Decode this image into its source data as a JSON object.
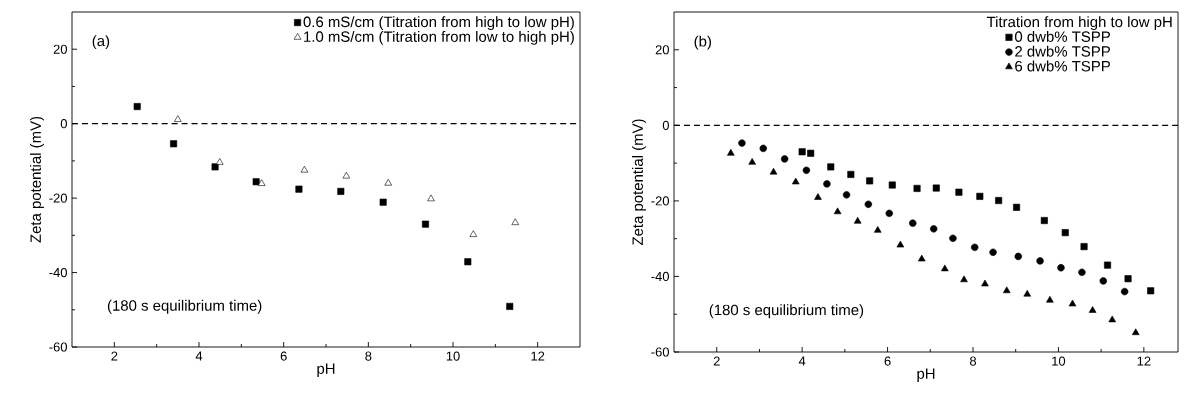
{
  "chart_data": [
    {
      "type": "scatter",
      "xlabel": "pH",
      "ylabel": "Zeta potential (mV)",
      "xlim": [
        1,
        13
      ],
      "ylim": [
        -60,
        30
      ],
      "xticks": [
        2,
        4,
        6,
        8,
        10,
        12
      ],
      "yticks": [
        -60,
        -40,
        -20,
        0,
        20
      ],
      "legend": "top right",
      "grid": false,
      "annotations": [
        "(a)",
        "(180 s equilibrium time)"
      ],
      "ref_lines": [
        {
          "axis": "y",
          "value": 0,
          "line_style": "dashed",
          "color": "#000000"
        }
      ],
      "series": [
        {
          "name": "0.6 mS/cm (Titration from high to low pH)",
          "color": "#000000",
          "marker": "square",
          "x": [
            2.54,
            3.4,
            4.38,
            5.35,
            6.36,
            7.35,
            8.35,
            9.35,
            10.35,
            11.34
          ],
          "values": [
            4.6,
            -5.4,
            -11.6,
            -15.6,
            -17.6,
            -18.2,
            -21.1,
            -27.0,
            -37.1,
            -49.1
          ]
        },
        {
          "name": "1.0 mS/cm (Titration from low to high pH)",
          "color": "#ffffff",
          "marker": "triangle-down",
          "x": [
            3.5,
            4.49,
            5.48,
            6.49,
            7.48,
            8.47,
            9.48,
            10.48,
            11.47
          ],
          "values": [
            1.1,
            -10.4,
            -16.1,
            -12.5,
            -14.1,
            -16.0,
            -20.2,
            -29.8,
            -26.6
          ]
        }
      ]
    },
    {
      "type": "scatter",
      "xlabel": "pH",
      "ylabel": "Zeta potential (mV)",
      "xlim": [
        1,
        12.8
      ],
      "ylim": [
        -60,
        30
      ],
      "xticks": [
        2,
        4,
        6,
        8,
        10,
        12
      ],
      "yticks": [
        -60,
        -40,
        -20,
        0,
        20
      ],
      "legend": "top right",
      "legend_title": "Titration from high to low pH",
      "grid": false,
      "annotations": [
        "(b)",
        "(180 s equilibrium time)"
      ],
      "ref_lines": [
        {
          "axis": "y",
          "value": 0,
          "line_style": "dashed",
          "color": "#000000"
        }
      ],
      "series": [
        {
          "name": "0 dwb% TSPP",
          "color": "#000000",
          "marker": "square",
          "x": [
            4.0,
            4.2,
            4.67,
            5.14,
            5.58,
            6.11,
            6.69,
            7.14,
            7.67,
            8.16,
            8.6,
            9.02,
            9.67,
            10.16,
            10.6,
            11.15,
            11.63,
            12.16
          ],
          "values": [
            -7.0,
            -7.4,
            -11.0,
            -13.0,
            -14.7,
            -15.8,
            -16.7,
            -16.6,
            -17.7,
            -18.8,
            -19.9,
            -21.7,
            -25.2,
            -28.4,
            -32.1,
            -37.0,
            -40.6,
            -43.8
          ]
        },
        {
          "name": "2 dwb% TSPP",
          "color": "#000000",
          "marker": "circle",
          "x": [
            2.59,
            3.09,
            3.59,
            4.1,
            4.58,
            5.04,
            5.55,
            6.04,
            6.59,
            7.08,
            7.53,
            8.04,
            8.47,
            9.06,
            9.57,
            10.06,
            10.55,
            11.05,
            11.55
          ],
          "values": [
            -4.7,
            -6.1,
            -8.9,
            -11.9,
            -15.5,
            -18.4,
            -20.9,
            -23.3,
            -25.9,
            -27.4,
            -29.9,
            -32.3,
            -33.6,
            -34.7,
            -35.9,
            -37.7,
            -38.9,
            -41.2,
            -44.0
          ]
        },
        {
          "name": "6 dwb% TSPP",
          "color": "#000000",
          "marker": "triangle",
          "x": [
            2.33,
            2.83,
            3.33,
            3.85,
            4.37,
            4.83,
            5.3,
            5.77,
            6.3,
            6.8,
            7.34,
            7.79,
            8.28,
            8.79,
            9.27,
            9.8,
            10.33,
            10.8,
            11.26,
            11.81
          ],
          "values": [
            -7.4,
            -9.8,
            -12.4,
            -15.0,
            -19.1,
            -22.9,
            -25.4,
            -27.8,
            -31.7,
            -35.4,
            -38.0,
            -40.9,
            -42.0,
            -43.8,
            -44.7,
            -46.3,
            -47.3,
            -49.0,
            -51.5,
            -54.9
          ]
        }
      ]
    }
  ]
}
